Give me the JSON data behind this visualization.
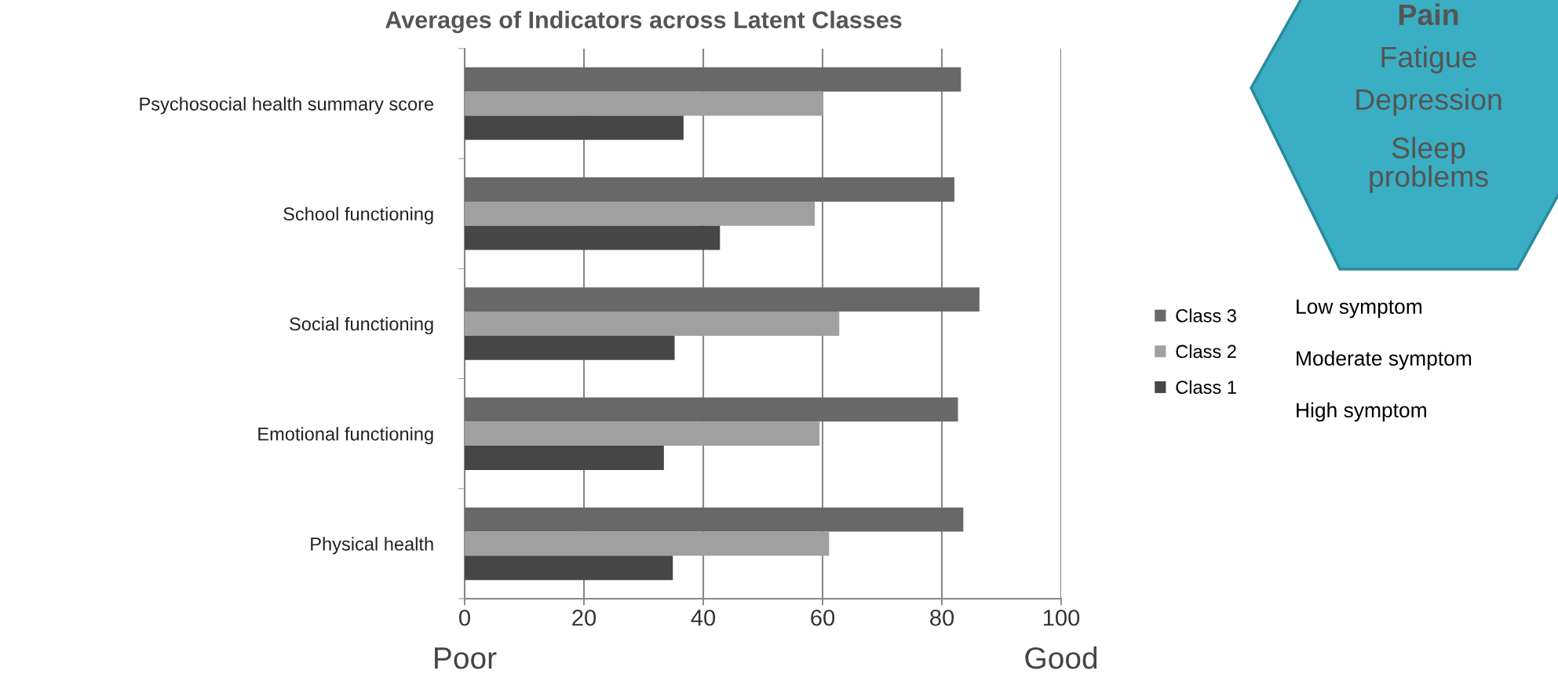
{
  "chart_data": {
    "type": "bar",
    "orientation": "horizontal",
    "title": "Averages of Indicators across Latent Classes",
    "categories": [
      "Psychosocial health summary score",
      "School functioning",
      "Social functioning",
      "Emotional functioning",
      "Physical health"
    ],
    "series": [
      {
        "name": "Class 3",
        "color": "#686868",
        "values": [
          83.2,
          82.1,
          86.3,
          82.7,
          83.6
        ]
      },
      {
        "name": "Class 2",
        "color": "#a0a0a0",
        "values": [
          60.1,
          58.7,
          62.8,
          59.5,
          61.1
        ]
      },
      {
        "name": "Class 1",
        "color": "#464646",
        "values": [
          36.7,
          42.8,
          35.2,
          33.4,
          34.9
        ]
      }
    ],
    "xlim": [
      0,
      100
    ],
    "xticks": [
      0,
      20,
      40,
      60,
      80,
      100
    ],
    "grid": "x",
    "legend": "right",
    "annotations": [
      "Poor",
      "Good",
      "Low symptom",
      "Moderate symptom",
      "High symptom",
      "Pain",
      "Fatigue",
      "Depression",
      "Sleep problems"
    ]
  }
}
